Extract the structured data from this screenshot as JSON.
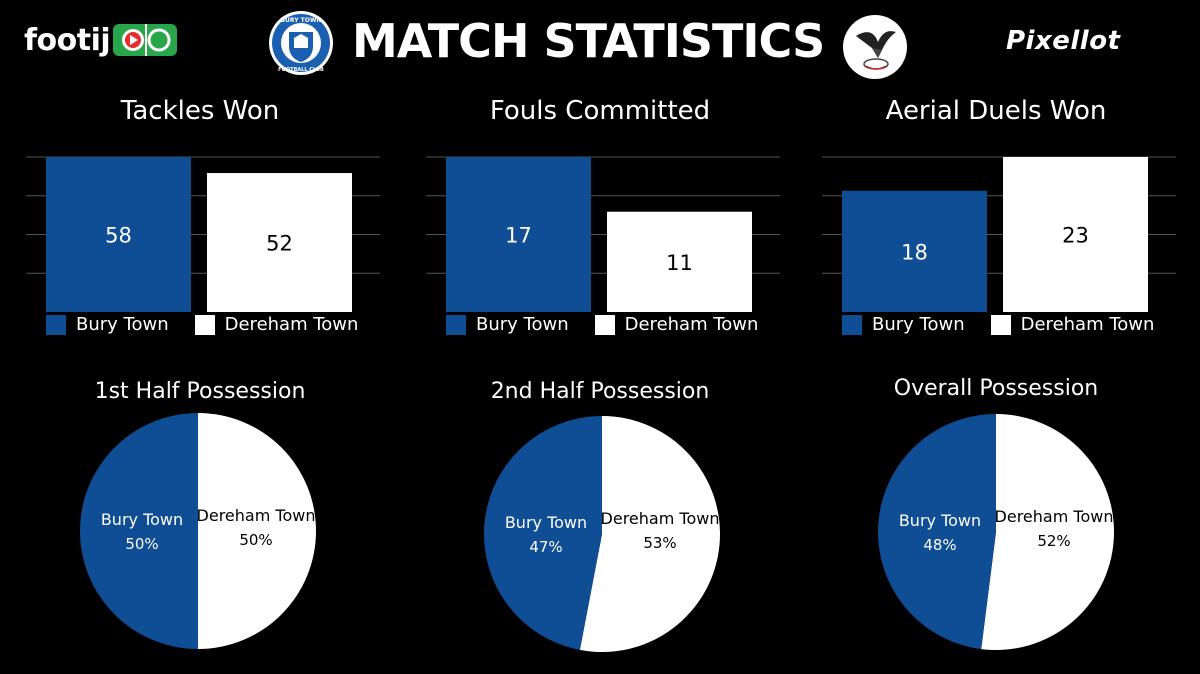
{
  "header": {
    "brand_left": "footij",
    "title": "MATCH STATISTICS",
    "brand_right": "Pixellot",
    "crest_left_text": "BURY TOWN FOOTBALL CLUB"
  },
  "colors": {
    "home": "#0f4d94",
    "away": "#ffffff",
    "grid": "#555555"
  },
  "legend": {
    "home": "Bury Town",
    "away": "Dereham Town"
  },
  "chart_data": [
    {
      "type": "bar",
      "title": "Tackles Won",
      "categories": [
        "Bury Town",
        "Dereham Town"
      ],
      "values": [
        58,
        52
      ],
      "ylim": [
        0,
        58
      ],
      "grid": true,
      "legend": "bottom"
    },
    {
      "type": "bar",
      "title": "Fouls Committed",
      "categories": [
        "Bury Town",
        "Dereham Town"
      ],
      "values": [
        17,
        11
      ],
      "ylim": [
        0,
        17
      ],
      "grid": true,
      "legend": "bottom"
    },
    {
      "type": "bar",
      "title": "Aerial Duels Won",
      "categories": [
        "Bury Town",
        "Dereham Town"
      ],
      "values": [
        18,
        23
      ],
      "ylim": [
        0,
        23
      ],
      "grid": true,
      "legend": "bottom"
    },
    {
      "type": "pie",
      "title": "1st Half Possession",
      "labels": [
        "Bury Town",
        "Dereham Town"
      ],
      "values": [
        50,
        50
      ],
      "value_labels": [
        "50%",
        "50%"
      ]
    },
    {
      "type": "pie",
      "title": "2nd Half Possession",
      "labels": [
        "Bury Town",
        "Dereham Town"
      ],
      "values": [
        47,
        53
      ],
      "value_labels": [
        "47%",
        "53%"
      ]
    },
    {
      "type": "pie",
      "title": "Overall Possession",
      "labels": [
        "Bury Town",
        "Dereham Town"
      ],
      "values": [
        48,
        52
      ],
      "value_labels": [
        "48%",
        "52%"
      ]
    }
  ]
}
